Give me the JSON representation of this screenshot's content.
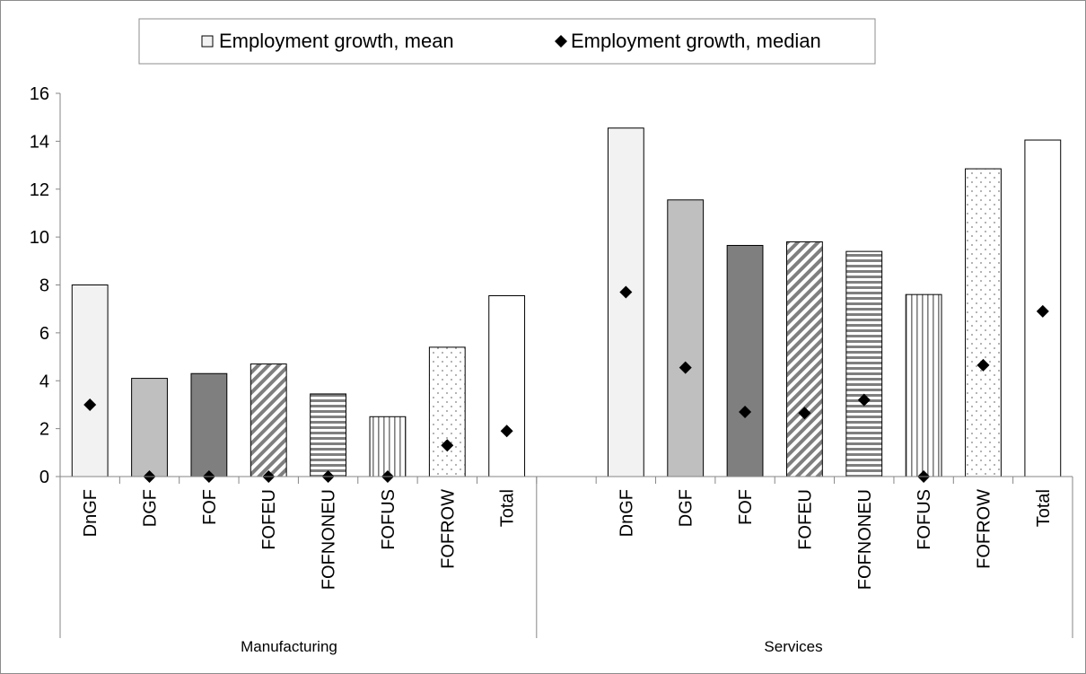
{
  "chart_data": {
    "type": "bar",
    "groups": [
      {
        "name": "Manufacturing",
        "categories": [
          "DnGF",
          "DGF",
          "FOF",
          "FOFEU",
          "FOFNONEU",
          "FOFUS",
          "FOFROW",
          "Total"
        ],
        "mean": [
          8.0,
          4.1,
          4.3,
          4.7,
          3.45,
          2.5,
          5.4,
          7.55
        ],
        "median": [
          3.0,
          0.0,
          0.0,
          0.0,
          0.0,
          0.0,
          1.3,
          1.9
        ]
      },
      {
        "name": "Services",
        "categories": [
          "DnGF",
          "DGF",
          "FOF",
          "FOFEU",
          "FOFNONEU",
          "FOFUS",
          "FOFROW",
          "Total"
        ],
        "mean": [
          14.55,
          11.55,
          9.65,
          9.8,
          9.4,
          7.6,
          12.85,
          14.05
        ],
        "median": [
          7.7,
          4.55,
          2.7,
          2.65,
          3.2,
          0.0,
          4.65,
          6.9
        ]
      }
    ],
    "series": [
      {
        "name": "Employment growth, mean",
        "kind": "bar"
      },
      {
        "name": "Employment growth, median",
        "kind": "marker"
      }
    ],
    "bar_styles": [
      "light",
      "mid-gray",
      "dark-gray",
      "diagonal",
      "horizontal",
      "vertical",
      "dots",
      "white"
    ],
    "colors": {
      "light": "#f2f2f2",
      "mid_gray": "#bfbfbf",
      "dark_gray": "#7f7f7f",
      "pattern": "#7f7f7f",
      "marker": "#000000",
      "bar_outline": "#000000"
    },
    "ylim": [
      0,
      16
    ],
    "yticks": [
      "0",
      "2",
      "4",
      "6",
      "8",
      "10",
      "12",
      "14",
      "16"
    ],
    "grid": false,
    "legend_position": "top"
  }
}
